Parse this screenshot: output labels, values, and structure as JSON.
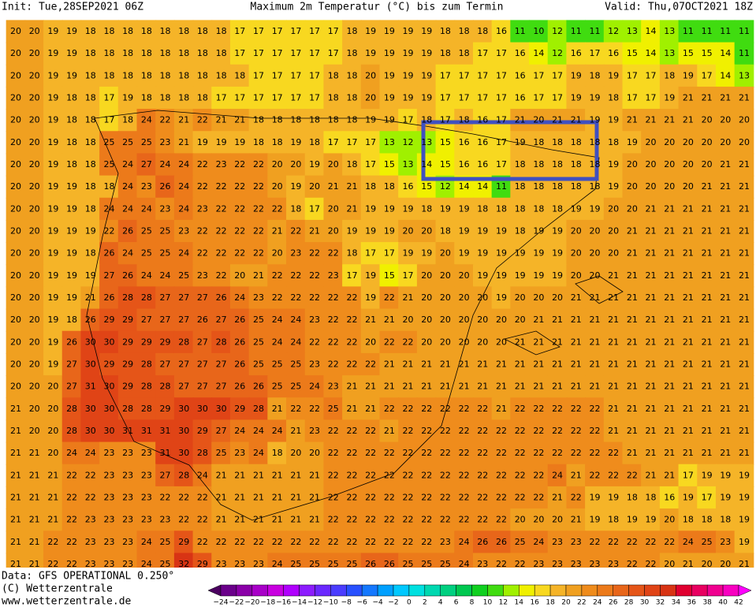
{
  "header": {
    "init": "Init: Tue,28SEP2021 06Z",
    "title": "Maximum 2m Temperatur (°C) bis zum Termin",
    "valid": "Valid: Thu,07OCT2021 18Z"
  },
  "footer": {
    "data": "Data: GFS OPERATIONAL 0.250°",
    "copyright": "(C) Wetterzentrale",
    "url": "www.wetterzentrale.de"
  },
  "grid": {
    "rows": [
      [
        20,
        20,
        19,
        19,
        18,
        18,
        18,
        18,
        18,
        18,
        18,
        18,
        17,
        17,
        17,
        17,
        17,
        17,
        18,
        19,
        19,
        19,
        19,
        18,
        18,
        18,
        16,
        11,
        10,
        12,
        11,
        11,
        12,
        13,
        14,
        13,
        11,
        11,
        11,
        11
      ],
      [
        20,
        20,
        19,
        19,
        18,
        18,
        18,
        18,
        18,
        18,
        18,
        18,
        17,
        17,
        17,
        17,
        17,
        17,
        18,
        19,
        19,
        19,
        19,
        18,
        18,
        17,
        17,
        16,
        14,
        12,
        16,
        17,
        16,
        15,
        14,
        13,
        15,
        15,
        14,
        11
      ],
      [
        20,
        20,
        19,
        19,
        18,
        18,
        18,
        18,
        18,
        18,
        18,
        18,
        18,
        17,
        17,
        17,
        17,
        18,
        18,
        20,
        19,
        19,
        19,
        17,
        17,
        17,
        17,
        16,
        17,
        17,
        19,
        18,
        19,
        17,
        17,
        18,
        19,
        17,
        14,
        13
      ],
      [
        20,
        20,
        19,
        18,
        18,
        17,
        19,
        18,
        18,
        18,
        18,
        17,
        17,
        17,
        17,
        17,
        17,
        18,
        18,
        20,
        19,
        19,
        19,
        17,
        17,
        17,
        17,
        16,
        17,
        17,
        19,
        19,
        18,
        17,
        17,
        19,
        21,
        21,
        21,
        21
      ],
      [
        20,
        20,
        19,
        18,
        18,
        17,
        18,
        24,
        22,
        21,
        22,
        21,
        21,
        18,
        18,
        18,
        18,
        18,
        18,
        19,
        19,
        17,
        18,
        17,
        18,
        16,
        17,
        21,
        20,
        21,
        21,
        19,
        19,
        21,
        21,
        21,
        21,
        20,
        20,
        20
      ],
      [
        20,
        20,
        19,
        18,
        18,
        25,
        25,
        25,
        23,
        21,
        19,
        19,
        19,
        18,
        18,
        19,
        18,
        17,
        17,
        17,
        13,
        12,
        13,
        15,
        16,
        16,
        17,
        19,
        18,
        18,
        18,
        18,
        18,
        19,
        20,
        20,
        20,
        20,
        20,
        20
      ],
      [
        20,
        20,
        19,
        18,
        18,
        25,
        24,
        27,
        24,
        24,
        22,
        23,
        22,
        22,
        20,
        20,
        19,
        20,
        18,
        17,
        15,
        13,
        14,
        15,
        16,
        16,
        17,
        18,
        18,
        18,
        18,
        18,
        19,
        20,
        20,
        20,
        20,
        20,
        21,
        21
      ],
      [
        20,
        20,
        19,
        19,
        18,
        18,
        24,
        23,
        26,
        24,
        22,
        22,
        22,
        22,
        20,
        19,
        20,
        21,
        21,
        18,
        18,
        16,
        15,
        12,
        14,
        14,
        11,
        18,
        18,
        18,
        18,
        18,
        19,
        20,
        20,
        20,
        20,
        21,
        21,
        21
      ],
      [
        20,
        20,
        19,
        19,
        18,
        24,
        24,
        24,
        23,
        24,
        23,
        22,
        22,
        22,
        22,
        18,
        17,
        20,
        21,
        19,
        19,
        19,
        18,
        19,
        19,
        18,
        18,
        18,
        18,
        18,
        19,
        19,
        20,
        20,
        21,
        21,
        21,
        21,
        21,
        21
      ],
      [
        20,
        20,
        19,
        19,
        19,
        22,
        26,
        25,
        25,
        23,
        22,
        22,
        22,
        22,
        21,
        22,
        21,
        20,
        19,
        19,
        19,
        20,
        20,
        18,
        19,
        19,
        19,
        18,
        19,
        19,
        20,
        20,
        20,
        21,
        21,
        21,
        21,
        21,
        21,
        21
      ],
      [
        20,
        20,
        19,
        19,
        18,
        26,
        24,
        25,
        25,
        24,
        22,
        22,
        22,
        22,
        20,
        23,
        22,
        22,
        18,
        17,
        17,
        19,
        19,
        20,
        19,
        19,
        19,
        19,
        19,
        19,
        20,
        20,
        20,
        21,
        21,
        21,
        21,
        21,
        21,
        21
      ],
      [
        20,
        20,
        19,
        19,
        19,
        27,
        26,
        24,
        24,
        25,
        23,
        22,
        20,
        21,
        22,
        22,
        22,
        23,
        17,
        19,
        15,
        17,
        20,
        20,
        20,
        19,
        19,
        19,
        19,
        19,
        20,
        20,
        21,
        21,
        21,
        21,
        21,
        21,
        21,
        21
      ],
      [
        20,
        20,
        19,
        19,
        21,
        26,
        28,
        28,
        27,
        27,
        27,
        26,
        24,
        23,
        22,
        22,
        22,
        22,
        22,
        19,
        22,
        21,
        20,
        20,
        20,
        20,
        19,
        20,
        20,
        20,
        21,
        21,
        21,
        21,
        21,
        21,
        21,
        21,
        21,
        21
      ],
      [
        20,
        20,
        19,
        18,
        26,
        29,
        29,
        27,
        27,
        27,
        26,
        27,
        26,
        25,
        24,
        24,
        23,
        22,
        22,
        21,
        21,
        20,
        20,
        20,
        20,
        20,
        20,
        20,
        21,
        21,
        21,
        21,
        21,
        21,
        21,
        21,
        21,
        21,
        21,
        21
      ],
      [
        20,
        20,
        19,
        26,
        30,
        30,
        29,
        29,
        29,
        28,
        27,
        28,
        26,
        25,
        24,
        24,
        22,
        22,
        22,
        20,
        22,
        22,
        20,
        20,
        20,
        20,
        20,
        21,
        21,
        21,
        21,
        21,
        21,
        21,
        21,
        21,
        21,
        21,
        21,
        21
      ],
      [
        20,
        20,
        19,
        27,
        30,
        29,
        29,
        28,
        27,
        27,
        27,
        27,
        26,
        25,
        25,
        25,
        23,
        22,
        22,
        22,
        21,
        21,
        21,
        21,
        21,
        21,
        21,
        21,
        21,
        21,
        21,
        21,
        21,
        21,
        21,
        21,
        21,
        21,
        21,
        21
      ],
      [
        20,
        20,
        20,
        27,
        31,
        30,
        29,
        28,
        28,
        27,
        27,
        27,
        26,
        26,
        25,
        25,
        24,
        23,
        21,
        21,
        21,
        21,
        21,
        21,
        21,
        21,
        21,
        21,
        21,
        21,
        21,
        21,
        21,
        21,
        21,
        21,
        21,
        21,
        21,
        21
      ],
      [
        21,
        20,
        20,
        28,
        30,
        30,
        28,
        28,
        29,
        30,
        30,
        30,
        29,
        28,
        21,
        22,
        22,
        25,
        21,
        21,
        22,
        22,
        22,
        22,
        22,
        22,
        21,
        22,
        22,
        22,
        22,
        22,
        21,
        21,
        21,
        21,
        21,
        21,
        21,
        21
      ],
      [
        21,
        20,
        20,
        28,
        30,
        30,
        31,
        31,
        31,
        30,
        29,
        27,
        24,
        24,
        24,
        21,
        23,
        22,
        22,
        22,
        21,
        22,
        22,
        22,
        22,
        22,
        22,
        22,
        22,
        22,
        22,
        22,
        21,
        21,
        21,
        21,
        21,
        21,
        21,
        21
      ],
      [
        21,
        21,
        20,
        24,
        24,
        23,
        23,
        23,
        31,
        30,
        28,
        25,
        23,
        24,
        18,
        20,
        20,
        22,
        22,
        22,
        22,
        22,
        22,
        22,
        22,
        22,
        22,
        22,
        22,
        22,
        22,
        22,
        22,
        21,
        21,
        21,
        21,
        21,
        21,
        21
      ],
      [
        21,
        21,
        21,
        22,
        22,
        23,
        23,
        23,
        27,
        28,
        24,
        21,
        21,
        21,
        21,
        21,
        21,
        22,
        22,
        22,
        22,
        22,
        22,
        22,
        22,
        22,
        22,
        22,
        22,
        24,
        21,
        22,
        22,
        22,
        21,
        21,
        17,
        19,
        19,
        19
      ],
      [
        21,
        21,
        21,
        22,
        22,
        23,
        23,
        23,
        22,
        22,
        22,
        21,
        21,
        21,
        21,
        21,
        21,
        22,
        22,
        22,
        22,
        22,
        22,
        22,
        22,
        22,
        22,
        22,
        22,
        21,
        22,
        19,
        19,
        18,
        18,
        16,
        19,
        17,
        19,
        19
      ],
      [
        21,
        21,
        21,
        22,
        23,
        23,
        23,
        23,
        23,
        22,
        22,
        21,
        21,
        21,
        21,
        21,
        21,
        22,
        22,
        22,
        22,
        22,
        22,
        22,
        22,
        22,
        22,
        20,
        20,
        20,
        21,
        19,
        18,
        19,
        19,
        20,
        18,
        18,
        18,
        19
      ],
      [
        21,
        21,
        22,
        22,
        23,
        23,
        23,
        24,
        25,
        29,
        22,
        22,
        22,
        22,
        22,
        22,
        22,
        22,
        22,
        22,
        22,
        22,
        22,
        23,
        24,
        26,
        26,
        25,
        24,
        23,
        23,
        22,
        22,
        22,
        22,
        22,
        24,
        25,
        23,
        19
      ],
      [
        21,
        21,
        22,
        22,
        23,
        23,
        23,
        24,
        25,
        32,
        29,
        23,
        23,
        23,
        24,
        25,
        25,
        25,
        25,
        26,
        26,
        25,
        25,
        25,
        24,
        23,
        22,
        22,
        23,
        23,
        23,
        23,
        23,
        22,
        22,
        20,
        21,
        20,
        20,
        21
      ]
    ]
  },
  "colorbar": {
    "labels": [
      {
        "value": -24,
        "label": "−24"
      },
      {
        "value": -22,
        "label": "−22"
      },
      {
        "value": -20,
        "label": "−20"
      },
      {
        "value": -18,
        "label": "−18"
      },
      {
        "value": -16,
        "label": "−16"
      },
      {
        "value": -14,
        "label": "−14"
      },
      {
        "value": -12,
        "label": "−12"
      },
      {
        "value": -10,
        "label": "−10"
      },
      {
        "value": -8,
        "label": "−8"
      },
      {
        "value": -6,
        "label": "−6"
      },
      {
        "value": -4,
        "label": "−4"
      },
      {
        "value": -2,
        "label": "−2"
      },
      0,
      2,
      4,
      6,
      8,
      10,
      12,
      14,
      16,
      18,
      20,
      22,
      24,
      26,
      28,
      30,
      32,
      34,
      36,
      38,
      40,
      42
    ],
    "colors": [
      "#4b0060",
      "#6a008a",
      "#8a00a8",
      "#a800c8",
      "#c800e0",
      "#b000ff",
      "#8c1cff",
      "#6a28ff",
      "#4a3cff",
      "#2850ff",
      "#1478ff",
      "#00a0ff",
      "#00c8ff",
      "#00e0e0",
      "#00d8b0",
      "#00d080",
      "#00c850",
      "#10d020",
      "#40dc10",
      "#a0f000",
      "#f0f000",
      "#f8d820",
      "#f5b428",
      "#f0a020",
      "#ef8c1c",
      "#ec7a1a",
      "#e8661a",
      "#e55518",
      "#e04416",
      "#d83414",
      "#e00030",
      "#e80060",
      "#f00090",
      "#f800c0",
      "#ff00ff"
    ]
  }
}
